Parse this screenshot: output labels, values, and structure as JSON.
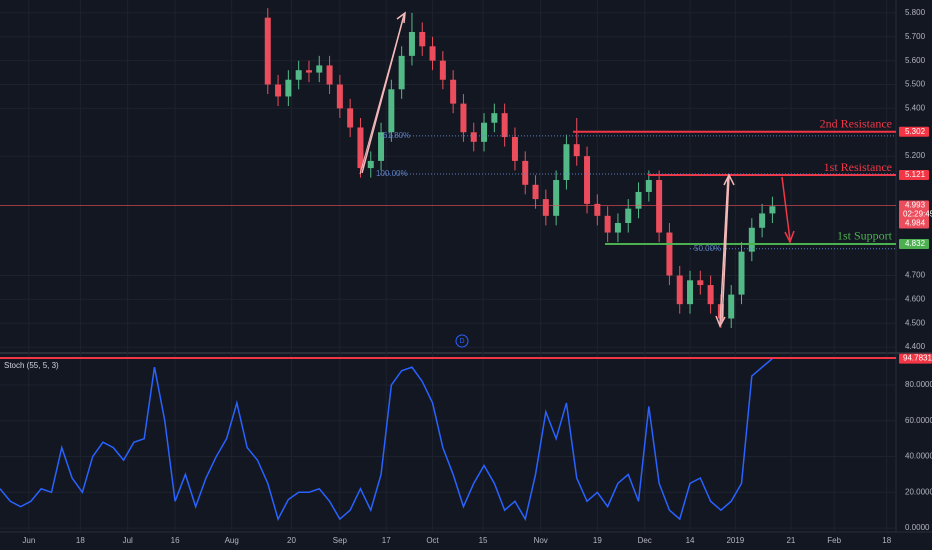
{
  "chart_data": [
    {
      "type": "candlestick",
      "x": [
        26,
        27,
        28,
        29,
        30,
        31,
        32,
        33,
        34,
        35,
        36,
        37,
        38,
        39,
        40,
        41,
        42,
        43,
        44,
        45,
        46,
        47,
        48,
        49,
        50,
        51,
        52,
        53,
        54,
        55,
        56,
        57,
        58,
        59,
        60,
        61,
        62,
        63,
        64,
        65,
        66,
        67,
        68,
        69,
        70,
        71,
        72,
        73,
        74,
        75
      ],
      "open": [
        5.78,
        5.5,
        5.45,
        5.52,
        5.56,
        5.55,
        5.58,
        5.5,
        5.4,
        5.32,
        5.15,
        5.18,
        5.3,
        5.48,
        5.62,
        5.72,
        5.66,
        5.6,
        5.52,
        5.42,
        5.3,
        5.26,
        5.34,
        5.38,
        5.28,
        5.18,
        5.08,
        5.02,
        4.95,
        5.1,
        5.25,
        5.2,
        5.0,
        4.95,
        4.88,
        4.92,
        4.98,
        5.05,
        5.1,
        4.88,
        4.7,
        4.58,
        4.68,
        4.66,
        4.58,
        4.52,
        4.62,
        4.8,
        4.9,
        4.96
      ],
      "high": [
        5.82,
        5.54,
        5.56,
        5.6,
        5.6,
        5.62,
        5.62,
        5.54,
        5.44,
        5.36,
        5.22,
        5.34,
        5.52,
        5.66,
        5.8,
        5.76,
        5.7,
        5.64,
        5.56,
        5.46,
        5.34,
        5.38,
        5.42,
        5.42,
        5.32,
        5.22,
        5.12,
        5.06,
        5.14,
        5.29,
        5.36,
        5.24,
        5.04,
        4.99,
        4.96,
        5.02,
        5.09,
        5.14,
        5.14,
        4.92,
        4.74,
        4.72,
        4.72,
        4.7,
        4.62,
        4.66,
        4.84,
        4.94,
        5.0,
        5.03
      ],
      "low": [
        5.46,
        5.41,
        5.41,
        5.48,
        5.51,
        5.51,
        5.46,
        5.36,
        5.28,
        5.11,
        5.11,
        5.14,
        5.26,
        5.44,
        5.58,
        5.62,
        5.56,
        5.48,
        5.38,
        5.26,
        5.22,
        5.22,
        5.3,
        5.24,
        5.14,
        5.04,
        4.98,
        4.91,
        4.91,
        5.06,
        5.16,
        4.96,
        4.91,
        4.84,
        4.84,
        4.88,
        4.94,
        5.01,
        4.84,
        4.66,
        4.54,
        4.54,
        4.62,
        4.54,
        4.48,
        4.48,
        4.58,
        4.76,
        4.86,
        4.92
      ],
      "close": [
        5.5,
        5.45,
        5.52,
        5.56,
        5.55,
        5.58,
        5.5,
        5.4,
        5.32,
        5.15,
        5.18,
        5.3,
        5.48,
        5.62,
        5.72,
        5.66,
        5.6,
        5.52,
        5.42,
        5.3,
        5.26,
        5.34,
        5.38,
        5.28,
        5.18,
        5.08,
        5.02,
        4.95,
        5.1,
        5.25,
        5.2,
        5.0,
        4.95,
        4.88,
        4.92,
        4.98,
        5.05,
        5.1,
        4.88,
        4.7,
        4.58,
        4.68,
        4.66,
        4.58,
        4.52,
        4.62,
        4.8,
        4.9,
        4.96,
        4.99
      ],
      "up_color": "#53b987",
      "down_color": "#eb4d5c",
      "xlim": [
        0,
        87
      ],
      "xticks": [
        {
          "value": 2.8,
          "label": "Jun"
        },
        {
          "value": 7.8,
          "label": "18"
        },
        {
          "value": 12.4,
          "label": "Jul"
        },
        {
          "value": 17,
          "label": "16"
        },
        {
          "value": 22.5,
          "label": "Aug"
        },
        {
          "value": 28.3,
          "label": "20"
        },
        {
          "value": 33,
          "label": "Sep"
        },
        {
          "value": 37.5,
          "label": "17"
        },
        {
          "value": 42,
          "label": "Oct"
        },
        {
          "value": 46.9,
          "label": "15"
        },
        {
          "value": 52.5,
          "label": "Nov"
        },
        {
          "value": 58,
          "label": "19"
        },
        {
          "value": 62.6,
          "label": "Dec"
        },
        {
          "value": 67,
          "label": "14"
        },
        {
          "value": 71.4,
          "label": "2019"
        },
        {
          "value": 76.8,
          "label": "21"
        },
        {
          "value": 81,
          "label": "Feb"
        },
        {
          "value": 86.1,
          "label": "18"
        }
      ],
      "ylim": [
        4.388,
        5.854
      ],
      "yticks": [
        {
          "value": 5.8,
          "label": "5.800"
        },
        {
          "value": 5.7,
          "label": "5.700"
        },
        {
          "value": 5.6,
          "label": "5.600"
        },
        {
          "value": 5.5,
          "label": "5.500"
        },
        {
          "value": 5.4,
          "label": "5.400"
        },
        {
          "value": 5.2,
          "label": "5.200"
        },
        {
          "value": 4.7,
          "label": "4.700"
        },
        {
          "value": 4.6,
          "label": "4.600"
        },
        {
          "value": 4.5,
          "label": "4.500"
        },
        {
          "value": 4.4,
          "label": "4.400"
        }
      ],
      "levels": [
        {
          "name": "2nd Resistance",
          "value": 5.302,
          "color": "#f23645"
        },
        {
          "name": "1st Resistance",
          "value": 5.121,
          "color": "#f23645"
        },
        {
          "name": "1st Support",
          "value": 4.832,
          "color": "#4caf50"
        }
      ],
      "fib": [
        {
          "label": "61.80%",
          "value": 5.285
        },
        {
          "label": "100.00%",
          "value": 5.125
        },
        {
          "label": "50.00%",
          "value": 4.812
        }
      ],
      "last_price": 4.993,
      "bid": 4.984,
      "countdown": "02:29:45",
      "marker": "D"
    },
    {
      "type": "line",
      "title": "Stoch (55, 5, 3)",
      "x": [
        0,
        1,
        2,
        3,
        4,
        5,
        6,
        7,
        8,
        9,
        10,
        11,
        12,
        13,
        14,
        15,
        16,
        17,
        18,
        19,
        20,
        21,
        22,
        23,
        24,
        25,
        26,
        27,
        28,
        29,
        30,
        31,
        32,
        33,
        34,
        35,
        36,
        37,
        38,
        39,
        40,
        41,
        42,
        43,
        44,
        45,
        46,
        47,
        48,
        49,
        50,
        51,
        52,
        53,
        54,
        55,
        56,
        57,
        58,
        59,
        60,
        61,
        62,
        63,
        64,
        65,
        66,
        67,
        68,
        69,
        70,
        71,
        72,
        73,
        74,
        75
      ],
      "series": [
        {
          "color": "#2962ff",
          "values": [
            22,
            15,
            12,
            15,
            22,
            20,
            45,
            28,
            20,
            40,
            48,
            45,
            38,
            48,
            50,
            90,
            60,
            15,
            30,
            12,
            28,
            40,
            50,
            70,
            45,
            38,
            25,
            5,
            16,
            20,
            20,
            22,
            15,
            5,
            10,
            22,
            10,
            30,
            80,
            88,
            90,
            82,
            70,
            45,
            30,
            12,
            25,
            35,
            25,
            10,
            15,
            5,
            30,
            65,
            50,
            70,
            28,
            15,
            20,
            12,
            25,
            30,
            15,
            68,
            25,
            10,
            5,
            25,
            28,
            15,
            10,
            15,
            25,
            85,
            90,
            94.7831
          ]
        }
      ],
      "xlim": [
        0,
        87
      ],
      "ylim": [
        -2.2,
        96.8
      ],
      "yticks": [
        {
          "value": 80,
          "label": "80.0000"
        },
        {
          "value": 60,
          "label": "60.0000"
        },
        {
          "value": 40,
          "label": "40.0000"
        },
        {
          "value": 20,
          "label": "20.0000"
        },
        {
          "value": 0,
          "label": "0.0000"
        }
      ]
    }
  ]
}
